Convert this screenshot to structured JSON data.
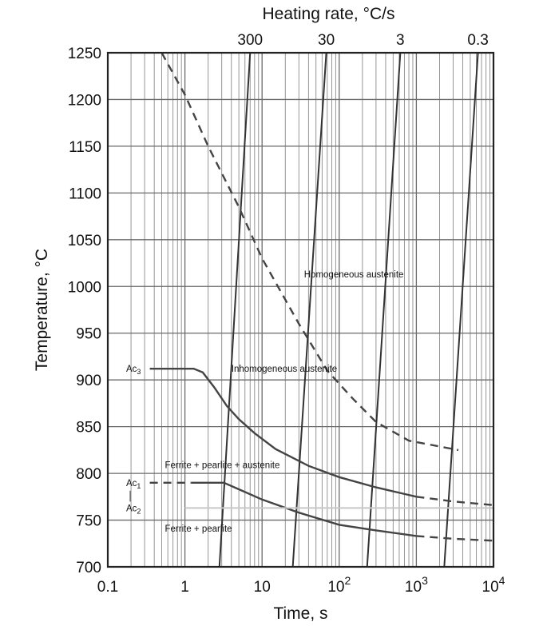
{
  "chart_data": {
    "type": "line",
    "title": "",
    "xlabel": "Time, s",
    "ylabel": "Temperature, °C",
    "top_axis_label": "Heating rate, °C/s",
    "x_scale": "log",
    "xlim": [
      0.1,
      10000
    ],
    "ylim": [
      700,
      1250
    ],
    "grid": true,
    "x_tick_labels": [
      {
        "value": 0.1,
        "base": "0.1",
        "sup": ""
      },
      {
        "value": 1,
        "base": "1",
        "sup": ""
      },
      {
        "value": 10,
        "base": "10",
        "sup": ""
      },
      {
        "value": 100,
        "base": "10",
        "sup": "2"
      },
      {
        "value": 1000,
        "base": "10",
        "sup": "3"
      },
      {
        "value": 10000,
        "base": "10",
        "sup": "4"
      }
    ],
    "y_ticks": [
      700,
      750,
      800,
      850,
      900,
      950,
      1000,
      1050,
      1100,
      1150,
      1200,
      1250
    ],
    "heating_rates": [
      {
        "label": "300",
        "points": [
          [
            2.8,
            700
          ],
          [
            7.0,
            1250
          ]
        ]
      },
      {
        "label": "30",
        "points": [
          [
            25,
            700
          ],
          [
            68,
            1250
          ]
        ]
      },
      {
        "label": "3",
        "points": [
          [
            230,
            700
          ],
          [
            620,
            1250
          ]
        ]
      },
      {
        "label": "0.3",
        "points": [
          [
            2300,
            700
          ],
          [
            6300,
            1250
          ]
        ]
      }
    ],
    "series": [
      {
        "style": "dashed",
        "points": [
          [
            0.5,
            1250
          ],
          [
            1,
            1205
          ],
          [
            2,
            1150
          ],
          [
            5,
            1085
          ],
          [
            10,
            1030
          ],
          [
            30,
            960
          ],
          [
            70,
            910
          ],
          [
            150,
            880
          ],
          [
            300,
            855
          ],
          [
            800,
            835
          ],
          [
            3500,
            825
          ]
        ]
      },
      {
        "style": "solid",
        "points": [
          [
            0.35,
            912
          ],
          [
            1.3,
            912
          ],
          [
            1.7,
            908
          ],
          [
            2.4,
            892
          ],
          [
            3.5,
            872
          ],
          [
            5,
            858
          ],
          [
            8,
            843
          ],
          [
            15,
            826
          ],
          [
            40,
            808
          ],
          [
            100,
            796
          ],
          [
            300,
            785
          ],
          [
            1000,
            775
          ]
        ]
      },
      {
        "style": "dashed",
        "points": [
          [
            1000,
            775
          ],
          [
            3000,
            770
          ],
          [
            10000,
            766
          ]
        ]
      },
      {
        "style": "dashed",
        "points": [
          [
            0.35,
            790
          ],
          [
            1.2,
            790
          ]
        ]
      },
      {
        "style": "solid",
        "points": [
          [
            1.2,
            790
          ],
          [
            3.2,
            790
          ],
          [
            5,
            783
          ],
          [
            10,
            772
          ],
          [
            30,
            758
          ],
          [
            100,
            745
          ],
          [
            300,
            739
          ],
          [
            1000,
            733
          ]
        ]
      },
      {
        "style": "dashed",
        "points": [
          [
            1000,
            733
          ],
          [
            3000,
            730
          ],
          [
            10000,
            728
          ]
        ]
      }
    ],
    "annotations": [
      {
        "text": "Homogeneous austenite",
        "x": 35,
        "y": 1013
      },
      {
        "text": "Inhomogeneous austenite",
        "x": 4,
        "y": 912
      },
      {
        "text": "Ferrite + pearlite + austenite",
        "x": 0.55,
        "y": 809
      },
      {
        "text": "Ferrite + pearlite",
        "x": 0.55,
        "y": 741
      }
    ],
    "transformation_labels": [
      {
        "name": "Ac",
        "sub": "3",
        "y": 912
      },
      {
        "name": "Ac",
        "sub": "1",
        "y": 790
      },
      {
        "name": "Ac",
        "sub": "2",
        "y": 763
      }
    ]
  }
}
